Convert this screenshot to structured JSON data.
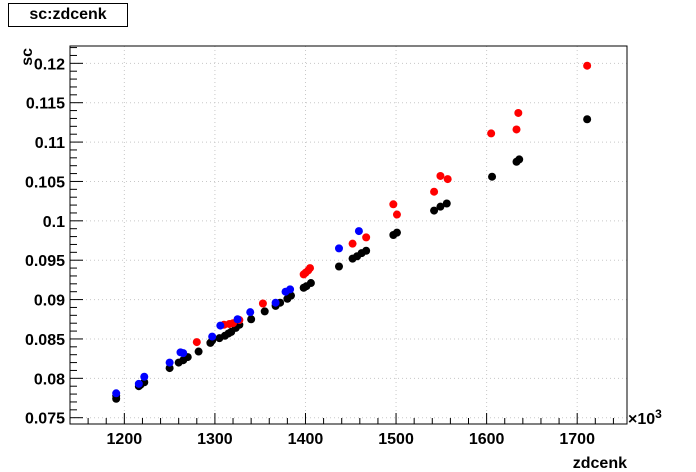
{
  "chart_data": {
    "type": "scatter",
    "title": "sc:zdcenk",
    "xlabel": "zdcenk",
    "ylabel": "sc",
    "x_multiplier_label": "×10",
    "x_multiplier_exp": "3",
    "xlim": [
      1140,
      1755
    ],
    "ylim": [
      0.0742,
      0.1222
    ],
    "x_ticks": [
      1200,
      1300,
      1400,
      1500,
      1600,
      1700
    ],
    "x_tick_labels": [
      "1200",
      "1300",
      "1400",
      "1500",
      "1600",
      "1700"
    ],
    "y_ticks": [
      0.075,
      0.08,
      0.085,
      0.09,
      0.095,
      0.1,
      0.105,
      0.11,
      0.115,
      0.12
    ],
    "y_tick_labels": [
      "0.075",
      "0.08",
      "0.085",
      "0.09",
      "0.095",
      "0.1",
      "0.105",
      "0.11",
      "0.115",
      "0.12"
    ],
    "grid": true,
    "series": [
      {
        "color": "#000000",
        "points": [
          [
            1191,
            0.0774
          ],
          [
            1191,
            0.0778
          ],
          [
            1216,
            0.079
          ],
          [
            1218,
            0.0792
          ],
          [
            1222,
            0.0795
          ],
          [
            1250,
            0.0813
          ],
          [
            1260,
            0.082
          ],
          [
            1265,
            0.0823
          ],
          [
            1270,
            0.0827
          ],
          [
            1282,
            0.0834
          ],
          [
            1295,
            0.0845
          ],
          [
            1297,
            0.0848
          ],
          [
            1305,
            0.0851
          ],
          [
            1311,
            0.0854
          ],
          [
            1315,
            0.0857
          ],
          [
            1318,
            0.0859
          ],
          [
            1323,
            0.0864
          ],
          [
            1327,
            0.0868
          ],
          [
            1340,
            0.0875
          ],
          [
            1355,
            0.0885
          ],
          [
            1367,
            0.0892
          ],
          [
            1372,
            0.0896
          ],
          [
            1380,
            0.0901
          ],
          [
            1384,
            0.0905
          ],
          [
            1398,
            0.0915
          ],
          [
            1401,
            0.0917
          ],
          [
            1406,
            0.0921
          ],
          [
            1437,
            0.0942
          ],
          [
            1452,
            0.0952
          ],
          [
            1457,
            0.0955
          ],
          [
            1462,
            0.0959
          ],
          [
            1467,
            0.0962
          ],
          [
            1497,
            0.0982
          ],
          [
            1501,
            0.0985
          ],
          [
            1542,
            0.1013
          ],
          [
            1549,
            0.1018
          ],
          [
            1556,
            0.1022
          ],
          [
            1606,
            0.1056
          ],
          [
            1633,
            0.1075
          ],
          [
            1636,
            0.1078
          ],
          [
            1711,
            0.1129
          ]
        ]
      },
      {
        "color": "#ff0000",
        "points": [
          [
            1280,
            0.0846
          ],
          [
            1310,
            0.0868
          ],
          [
            1316,
            0.0869
          ],
          [
            1320,
            0.087
          ],
          [
            1327,
            0.0874
          ],
          [
            1353,
            0.0895
          ],
          [
            1398,
            0.0932
          ],
          [
            1400,
            0.0934
          ],
          [
            1403,
            0.0937
          ],
          [
            1405,
            0.094
          ],
          [
            1452,
            0.0971
          ],
          [
            1467,
            0.0979
          ],
          [
            1497,
            0.1021
          ],
          [
            1501,
            0.1008
          ],
          [
            1542,
            0.1037
          ],
          [
            1549,
            0.1057
          ],
          [
            1557,
            0.1053
          ],
          [
            1605,
            0.1111
          ],
          [
            1633,
            0.1116
          ],
          [
            1635,
            0.1137
          ],
          [
            1711,
            0.1197
          ]
        ]
      },
      {
        "color": "#0000ff",
        "points": [
          [
            1191,
            0.0781
          ],
          [
            1216,
            0.0793
          ],
          [
            1222,
            0.0802
          ],
          [
            1250,
            0.082
          ],
          [
            1262,
            0.0833
          ],
          [
            1265,
            0.0832
          ],
          [
            1297,
            0.0853
          ],
          [
            1306,
            0.0867
          ],
          [
            1325,
            0.0875
          ],
          [
            1339,
            0.0884
          ],
          [
            1367,
            0.0896
          ],
          [
            1378,
            0.091
          ],
          [
            1383,
            0.0913
          ],
          [
            1437,
            0.0965
          ],
          [
            1459,
            0.0987
          ]
        ]
      }
    ]
  }
}
